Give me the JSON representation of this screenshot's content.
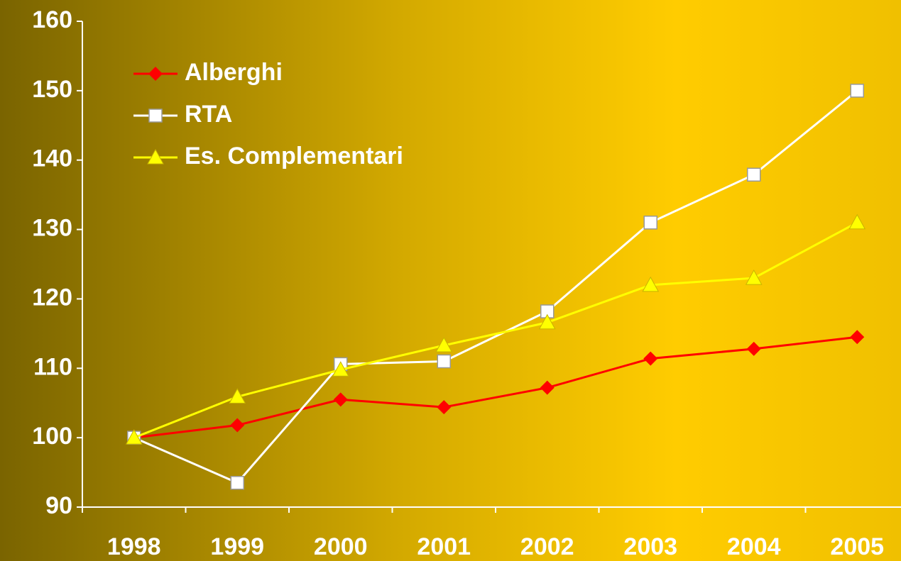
{
  "chart_data": {
    "type": "line",
    "categories": [
      "1998",
      "1999",
      "2000",
      "2001",
      "2002",
      "2003",
      "2004",
      "2005"
    ],
    "series": [
      {
        "name": "Alberghi",
        "color": "#ff0000",
        "marker": "diamond",
        "values": [
          100,
          101.8,
          105.5,
          104.4,
          107.2,
          111.4,
          112.8,
          114.5
        ]
      },
      {
        "name": "RTA",
        "color": "#ffffff",
        "marker": "square",
        "values": [
          100,
          93.5,
          110.6,
          111,
          118.2,
          131,
          137.9,
          150
        ]
      },
      {
        "name": "Es. Complementari",
        "color": "#ffff00",
        "marker": "triangle",
        "values": [
          100,
          105.9,
          109.8,
          113.3,
          116.6,
          122,
          123,
          131
        ]
      }
    ],
    "ylim": [
      90,
      160
    ],
    "yticks": [
      90,
      100,
      110,
      120,
      130,
      140,
      150,
      160
    ],
    "legend": "top-left",
    "grid": false
  }
}
